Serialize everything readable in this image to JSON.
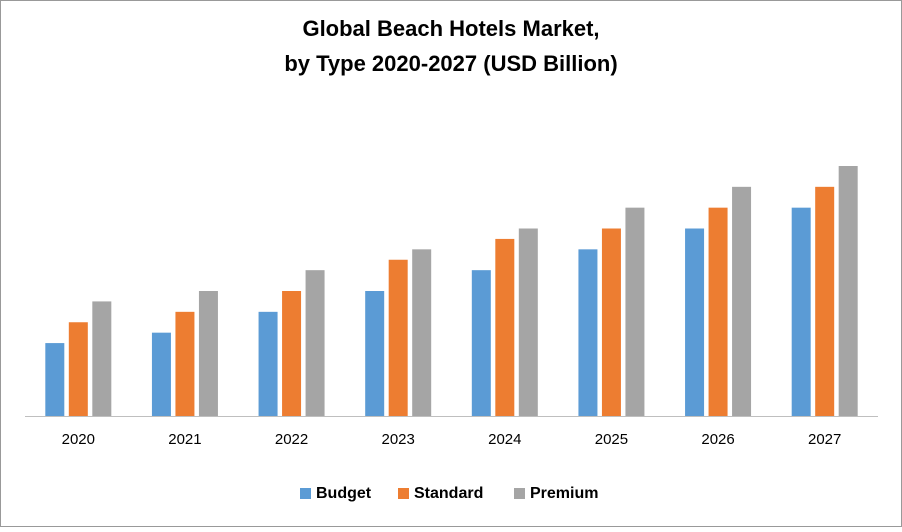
{
  "chart_data": {
    "type": "bar",
    "title": "Global Beach Hotels Market,",
    "subtitle": "by Type 2020-2027 (USD Billion)",
    "categories": [
      "2020",
      "2021",
      "2022",
      "2023",
      "2024",
      "2025",
      "2026",
      "2027"
    ],
    "series": [
      {
        "name": "Budget",
        "color": "#5b9bd5",
        "values": [
          3.5,
          4,
          5,
          6,
          7,
          8,
          9,
          10
        ]
      },
      {
        "name": "Standard",
        "color": "#ed7d31",
        "values": [
          4.5,
          5,
          6,
          7.5,
          8.5,
          9,
          10,
          11
        ]
      },
      {
        "name": "Premium",
        "color": "#a5a5a5",
        "values": [
          5.5,
          6,
          7,
          8,
          9,
          10,
          11,
          12
        ]
      }
    ],
    "legend": "bottom"
  }
}
